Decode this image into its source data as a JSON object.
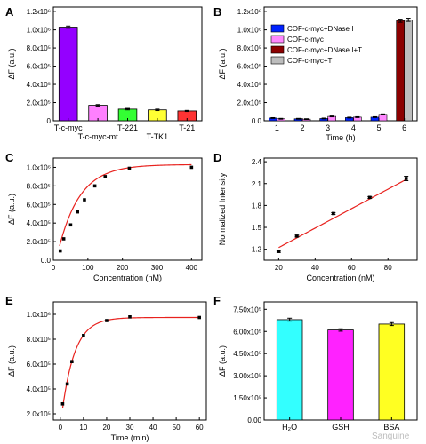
{
  "figure": {
    "watermark": "Sanguine"
  },
  "chart_data": [
    {
      "panel": "A",
      "type": "bar",
      "ylabel": "ΔF (a.u.)",
      "ylim": [
        0,
        1250000
      ],
      "yticks": [
        0,
        200000,
        400000,
        600000,
        800000,
        1000000,
        1200000
      ],
      "ytick_labels": [
        "0",
        "2.0x10⁵",
        "4.0x10⁵",
        "6.0x10⁵",
        "8.0x10⁵",
        "1.0x10⁶",
        "1.2x10⁶"
      ],
      "categories": [
        "T-c-myc",
        "T-c-myc-mt",
        "T-221",
        "T-TK1",
        "T-21"
      ],
      "values": [
        1030000,
        170000,
        128000,
        120000,
        108000
      ],
      "errors": [
        12000,
        8000,
        8000,
        8000,
        6000
      ],
      "colors": [
        "#9400ff",
        "#ff80ff",
        "#33ff33",
        "#ffff33",
        "#ff3333"
      ]
    },
    {
      "panel": "B",
      "type": "bar",
      "xlabel": "Time (h)",
      "ylabel": "ΔF (a.u.)",
      "ylim": [
        0,
        1250000
      ],
      "yticks": [
        0,
        200000,
        400000,
        600000,
        800000,
        1000000,
        1200000
      ],
      "ytick_labels": [
        "0.0",
        "2.0x10⁵",
        "4.0x10⁵",
        "6.0x10⁵",
        "8.0x10⁵",
        "1.0x10⁶",
        "1.2x10⁶"
      ],
      "categories": [
        "1",
        "2",
        "3",
        "4",
        "5",
        "6"
      ],
      "legend_position": "top-left",
      "series": [
        {
          "name": "COF-c-myc+DNase I",
          "color": "#0022ff",
          "values": [
            30000,
            22000,
            25000,
            35000,
            40000,
            null
          ]
        },
        {
          "name": "COF-c-myc",
          "color": "#ff88ff",
          "values": [
            22000,
            18000,
            48000,
            40000,
            70000,
            null
          ]
        },
        {
          "name": "COF-c-myc+DNase I+T",
          "color": "#8b0000",
          "values": [
            null,
            null,
            null,
            null,
            null,
            1100000
          ]
        },
        {
          "name": "COF-c-myc+T",
          "color": "#bdbdbd",
          "values": [
            null,
            null,
            null,
            null,
            null,
            1110000
          ]
        }
      ]
    },
    {
      "panel": "C",
      "type": "scatter",
      "xlabel": "Concentration (nM)",
      "ylabel": "ΔF (a.u.)",
      "xlim": [
        0,
        430
      ],
      "ylim": [
        0,
        1100000
      ],
      "xticks": [
        0,
        100,
        200,
        300,
        400
      ],
      "xtick_labels": [
        "0",
        "100",
        "200",
        "300",
        "400"
      ],
      "yticks": [
        0,
        200000,
        400000,
        600000,
        800000,
        1000000
      ],
      "ytick_labels": [
        "0.0",
        "2.0x10⁵",
        "4.0x10⁵",
        "6.0x10⁵",
        "8.0x10⁵",
        "1.0x10⁶"
      ],
      "x": [
        20,
        30,
        50,
        70,
        90,
        120,
        150,
        220,
        400
      ],
      "y": [
        100000,
        230000,
        380000,
        520000,
        650000,
        800000,
        900000,
        990000,
        1000000
      ],
      "fit_color": "#e8221e"
    },
    {
      "panel": "D",
      "type": "scatter",
      "xlabel": "Concentration (nM)",
      "ylabel": "Normalized Intensity",
      "xlim": [
        12,
        96
      ],
      "ylim": [
        1.05,
        2.45
      ],
      "xticks": [
        20,
        40,
        60,
        80
      ],
      "xtick_labels": [
        "20",
        "40",
        "60",
        "80"
      ],
      "yticks": [
        1.2,
        1.5,
        1.8,
        2.1,
        2.4
      ],
      "ytick_labels": [
        "1.2",
        "1.5",
        "1.8",
        "2.1",
        "2.4"
      ],
      "x": [
        20,
        30,
        50,
        70,
        90
      ],
      "y": [
        1.17,
        1.38,
        1.69,
        1.91,
        2.17
      ],
      "fit_color": "#e8221e"
    },
    {
      "panel": "E",
      "type": "scatter",
      "xlabel": "Time (min)",
      "ylabel": "ΔF (a.u.)",
      "xlim": [
        -3,
        63
      ],
      "ylim": [
        150000,
        1100000
      ],
      "xticks": [
        0,
        10,
        20,
        30,
        40,
        50,
        60
      ],
      "xtick_labels": [
        "0",
        "10",
        "20",
        "30",
        "40",
        "50",
        "60"
      ],
      "yticks": [
        200000,
        400000,
        600000,
        800000,
        1000000
      ],
      "ytick_labels": [
        "2.0x10⁵",
        "4.0x10⁵",
        "6.0x10⁵",
        "8.0x10⁵",
        "1.0x10⁶"
      ],
      "x": [
        1,
        3,
        5,
        10,
        20,
        30,
        60
      ],
      "y": [
        280000,
        440000,
        620000,
        830000,
        950000,
        980000,
        975000
      ],
      "fit_color": "#e8221e"
    },
    {
      "panel": "F",
      "type": "bar",
      "ylabel": "ΔF (a.u.)",
      "ylim": [
        0,
        800000
      ],
      "yticks": [
        0,
        150000,
        300000,
        450000,
        600000,
        750000
      ],
      "ytick_labels": [
        "0.00",
        "1.50x10⁵",
        "3.00x10⁵",
        "4.50x10⁵",
        "6.00x10⁵",
        "7.50x10⁵"
      ],
      "categories": [
        "H₂O",
        "GSH",
        "BSA"
      ],
      "values": [
        680000,
        610000,
        650000
      ],
      "errors": [
        10000,
        8000,
        10000
      ],
      "colors": [
        "#33ffff",
        "#ff22ff",
        "#ffff22"
      ]
    }
  ]
}
